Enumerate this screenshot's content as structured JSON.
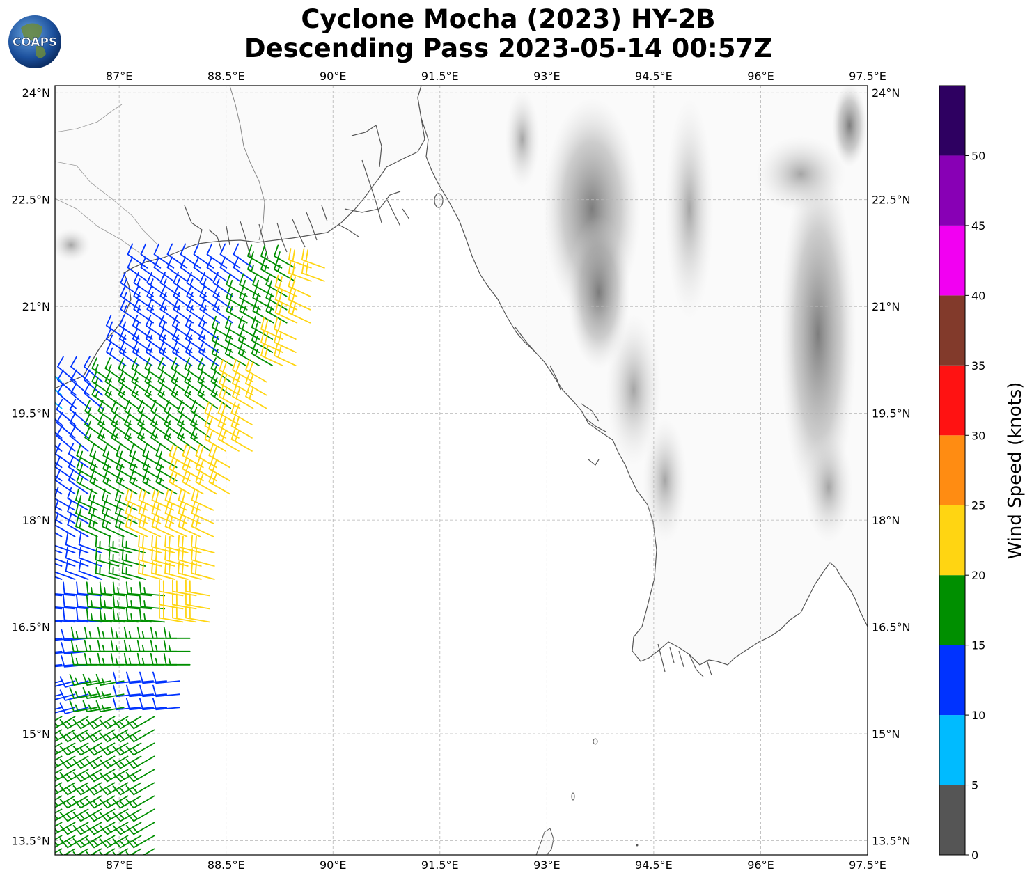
{
  "title": {
    "line1": "Cyclone Mocha (2023) HY-2B",
    "line2": "Descending Pass 2023-05-14 00:57Z"
  },
  "logo": {
    "text": "COAPS",
    "icon": "coaps-globe-icon"
  },
  "map": {
    "lon_range": [
      86.1,
      97.5
    ],
    "lat_range": [
      13.3,
      24.1
    ],
    "lon_ticks": [
      {
        "value": 87.0,
        "label": "87°E"
      },
      {
        "value": 88.5,
        "label": "88.5°E"
      },
      {
        "value": 90.0,
        "label": "90°E"
      },
      {
        "value": 91.5,
        "label": "91.5°E"
      },
      {
        "value": 93.0,
        "label": "93°E"
      },
      {
        "value": 94.5,
        "label": "94.5°E"
      },
      {
        "value": 96.0,
        "label": "96°E"
      },
      {
        "value": 97.5,
        "label": "97.5°E"
      }
    ],
    "lat_ticks": [
      {
        "value": 24.0,
        "label": "24°N"
      },
      {
        "value": 22.5,
        "label": "22.5°N"
      },
      {
        "value": 21.0,
        "label": "21°N"
      },
      {
        "value": 19.5,
        "label": "19.5°N"
      },
      {
        "value": 18.0,
        "label": "18°N"
      },
      {
        "value": 16.5,
        "label": "16.5°N"
      },
      {
        "value": 15.0,
        "label": "15°N"
      },
      {
        "value": 13.5,
        "label": "13.5°N"
      }
    ],
    "grid": true,
    "coastline_color": "#555555"
  },
  "colorbar": {
    "label": "Wind Speed (knots)",
    "bins": [
      {
        "min": 0,
        "max": 5,
        "color": "#555555"
      },
      {
        "min": 5,
        "max": 10,
        "color": "#00bbff"
      },
      {
        "min": 10,
        "max": 15,
        "color": "#0033ff"
      },
      {
        "min": 15,
        "max": 20,
        "color": "#008f00"
      },
      {
        "min": 20,
        "max": 25,
        "color": "#ffd512"
      },
      {
        "min": 25,
        "max": 30,
        "color": "#ff8c12"
      },
      {
        "min": 30,
        "max": 35,
        "color": "#ff1212"
      },
      {
        "min": 35,
        "max": 40,
        "color": "#823a2b"
      },
      {
        "min": 40,
        "max": 45,
        "color": "#f200f2"
      },
      {
        "min": 45,
        "max": 50,
        "color": "#8800b5"
      },
      {
        "min": 50,
        "max": 55,
        "color": "#2e0061"
      }
    ],
    "ticks": [
      "0",
      "5",
      "10",
      "15",
      "20",
      "25",
      "30",
      "35",
      "40",
      "45",
      "50"
    ]
  },
  "chart_data": {
    "type": "scatter",
    "title": "Cyclone Mocha (2023) HY-2B Descending Pass 2023-05-14 00:57Z",
    "xlabel": "",
    "ylabel": "",
    "xlim": [
      86.1,
      97.5
    ],
    "ylim": [
      13.3,
      24.1
    ],
    "value_label": "Wind Speed (knots)",
    "wind_bands": [
      {
        "lat_start": 21.6,
        "lat_end": 21.2,
        "segments": [
          {
            "lon_start": 87.3,
            "lon_end": 88.9,
            "speed": 12,
            "dir": 305
          },
          {
            "lon_start": 89.0,
            "lon_end": 89.6,
            "speed": 17,
            "dir": 300
          },
          {
            "lon_start": 89.6,
            "lon_end": 90.0,
            "speed": 22,
            "dir": 290
          }
        ]
      },
      {
        "lat_start": 21.2,
        "lat_end": 20.6,
        "segments": [
          {
            "lon_start": 87.2,
            "lon_end": 88.7,
            "speed": 13,
            "dir": 305
          },
          {
            "lon_start": 88.7,
            "lon_end": 89.4,
            "speed": 17,
            "dir": 300
          },
          {
            "lon_start": 89.4,
            "lon_end": 89.8,
            "speed": 22,
            "dir": 295
          }
        ]
      },
      {
        "lat_start": 20.6,
        "lat_end": 20.0,
        "segments": [
          {
            "lon_start": 87.0,
            "lon_end": 88.5,
            "speed": 13,
            "dir": 305
          },
          {
            "lon_start": 88.5,
            "lon_end": 89.2,
            "speed": 17,
            "dir": 300
          },
          {
            "lon_start": 89.2,
            "lon_end": 89.6,
            "speed": 22,
            "dir": 295
          }
        ]
      },
      {
        "lat_start": 20.0,
        "lat_end": 19.4,
        "segments": [
          {
            "lon_start": 86.1,
            "lon_end": 86.3,
            "speed": 8,
            "dir": 310
          },
          {
            "lon_start": 86.3,
            "lon_end": 86.8,
            "speed": 12,
            "dir": 310
          },
          {
            "lon_start": 86.8,
            "lon_end": 88.6,
            "speed": 17,
            "dir": 305
          },
          {
            "lon_start": 88.6,
            "lon_end": 89.1,
            "speed": 22,
            "dir": 300
          }
        ]
      },
      {
        "lat_start": 19.4,
        "lat_end": 18.8,
        "segments": [
          {
            "lon_start": 86.1,
            "lon_end": 86.7,
            "speed": 12,
            "dir": 310
          },
          {
            "lon_start": 86.7,
            "lon_end": 88.4,
            "speed": 17,
            "dir": 305
          },
          {
            "lon_start": 88.4,
            "lon_end": 88.9,
            "speed": 22,
            "dir": 300
          }
        ]
      },
      {
        "lat_start": 18.8,
        "lat_end": 18.2,
        "segments": [
          {
            "lon_start": 86.1,
            "lon_end": 86.6,
            "speed": 12,
            "dir": 305
          },
          {
            "lon_start": 86.6,
            "lon_end": 87.9,
            "speed": 17,
            "dir": 300
          },
          {
            "lon_start": 87.9,
            "lon_end": 88.6,
            "speed": 22,
            "dir": 300
          }
        ]
      },
      {
        "lat_start": 18.2,
        "lat_end": 17.6,
        "segments": [
          {
            "lon_start": 86.1,
            "lon_end": 86.6,
            "speed": 12,
            "dir": 300
          },
          {
            "lon_start": 86.6,
            "lon_end": 87.3,
            "speed": 17,
            "dir": 295
          },
          {
            "lon_start": 87.3,
            "lon_end": 88.5,
            "speed": 22,
            "dir": 295
          }
        ]
      },
      {
        "lat_start": 17.6,
        "lat_end": 17.0,
        "segments": [
          {
            "lon_start": 86.1,
            "lon_end": 86.9,
            "speed": 12,
            "dir": 290
          },
          {
            "lon_start": 86.9,
            "lon_end": 87.5,
            "speed": 17,
            "dir": 285
          },
          {
            "lon_start": 87.5,
            "lon_end": 88.4,
            "speed": 22,
            "dir": 285
          }
        ]
      },
      {
        "lat_start": 17.0,
        "lat_end": 16.4,
        "segments": [
          {
            "lon_start": 86.1,
            "lon_end": 86.8,
            "speed": 12,
            "dir": 275
          },
          {
            "lon_start": 86.8,
            "lon_end": 87.8,
            "speed": 17,
            "dir": 275
          },
          {
            "lon_start": 87.8,
            "lon_end": 88.3,
            "speed": 22,
            "dir": 280
          }
        ]
      },
      {
        "lat_start": 16.4,
        "lat_end": 15.8,
        "segments": [
          {
            "lon_start": 86.1,
            "lon_end": 86.6,
            "speed": 12,
            "dir": 265
          },
          {
            "lon_start": 86.6,
            "lon_end": 88.1,
            "speed": 17,
            "dir": 270
          }
        ]
      },
      {
        "lat_start": 15.8,
        "lat_end": 15.3,
        "segments": [
          {
            "lon_start": 86.1,
            "lon_end": 86.6,
            "speed": 12,
            "dir": 255
          },
          {
            "lon_start": 86.6,
            "lon_end": 87.2,
            "speed": 17,
            "dir": 260
          },
          {
            "lon_start": 87.2,
            "lon_end": 87.9,
            "speed": 12,
            "dir": 265
          }
        ]
      },
      {
        "lat_start": 15.3,
        "lat_end": 13.3,
        "segments": [
          {
            "lon_start": 86.1,
            "lon_end": 87.6,
            "speed": 17,
            "dir": 240
          }
        ]
      }
    ]
  }
}
